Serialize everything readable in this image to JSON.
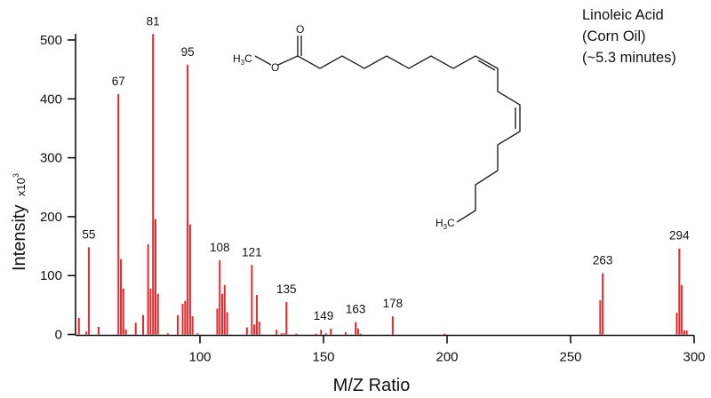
{
  "chart_data": {
    "type": "bar",
    "title_lines": [
      "Linoleic Acid",
      "(Corn Oil)",
      "(~5.3 minutes)"
    ],
    "xlabel": "M/Z Ratio",
    "ylabel": "Intensity",
    "ylabel_unit": "x10",
    "ylabel_unit_exp": "3",
    "xlim": [
      50,
      300
    ],
    "ylim": [
      0,
      500
    ],
    "xticks": [
      100,
      150,
      200,
      250,
      300
    ],
    "yticks": [
      0,
      100,
      200,
      300,
      400,
      500
    ],
    "grid": false,
    "bar_color": "#e8262b",
    "peaks": [
      {
        "mz": 51,
        "intensity": 28
      },
      {
        "mz": 54,
        "intensity": 5
      },
      {
        "mz": 55,
        "intensity": 148
      },
      {
        "mz": 59,
        "intensity": 13
      },
      {
        "mz": 67,
        "intensity": 408
      },
      {
        "mz": 68,
        "intensity": 128
      },
      {
        "mz": 69,
        "intensity": 78
      },
      {
        "mz": 70,
        "intensity": 9
      },
      {
        "mz": 74,
        "intensity": 20
      },
      {
        "mz": 77,
        "intensity": 33
      },
      {
        "mz": 79,
        "intensity": 153
      },
      {
        "mz": 80,
        "intensity": 78
      },
      {
        "mz": 81,
        "intensity": 510
      },
      {
        "mz": 82,
        "intensity": 196
      },
      {
        "mz": 83,
        "intensity": 69
      },
      {
        "mz": 87,
        "intensity": 2
      },
      {
        "mz": 91,
        "intensity": 33
      },
      {
        "mz": 93,
        "intensity": 52
      },
      {
        "mz": 94,
        "intensity": 57
      },
      {
        "mz": 95,
        "intensity": 458
      },
      {
        "mz": 96,
        "intensity": 187
      },
      {
        "mz": 97,
        "intensity": 31
      },
      {
        "mz": 99,
        "intensity": 2
      },
      {
        "mz": 107,
        "intensity": 44
      },
      {
        "mz": 108,
        "intensity": 126
      },
      {
        "mz": 109,
        "intensity": 69
      },
      {
        "mz": 110,
        "intensity": 84
      },
      {
        "mz": 111,
        "intensity": 38
      },
      {
        "mz": 119,
        "intensity": 12
      },
      {
        "mz": 121,
        "intensity": 118
      },
      {
        "mz": 122,
        "intensity": 17
      },
      {
        "mz": 123,
        "intensity": 67
      },
      {
        "mz": 124,
        "intensity": 22
      },
      {
        "mz": 131,
        "intensity": 8
      },
      {
        "mz": 133,
        "intensity": 2
      },
      {
        "mz": 134,
        "intensity": 2
      },
      {
        "mz": 135,
        "intensity": 55
      },
      {
        "mz": 139,
        "intensity": 1
      },
      {
        "mz": 147,
        "intensity": 1
      },
      {
        "mz": 149,
        "intensity": 8
      },
      {
        "mz": 151,
        "intensity": 2
      },
      {
        "mz": 153,
        "intensity": 10
      },
      {
        "mz": 159,
        "intensity": 4
      },
      {
        "mz": 163,
        "intensity": 21
      },
      {
        "mz": 164,
        "intensity": 10
      },
      {
        "mz": 165,
        "intensity": 1
      },
      {
        "mz": 178,
        "intensity": 31
      },
      {
        "mz": 199,
        "intensity": 1
      },
      {
        "mz": 262,
        "intensity": 58
      },
      {
        "mz": 263,
        "intensity": 104
      },
      {
        "mz": 293,
        "intensity": 37
      },
      {
        "mz": 294,
        "intensity": 146
      },
      {
        "mz": 295,
        "intensity": 84
      },
      {
        "mz": 296,
        "intensity": 7
      },
      {
        "mz": 297,
        "intensity": 7
      }
    ],
    "annotations": [
      {
        "text": "55",
        "mz": 55,
        "intensity": 148
      },
      {
        "text": "67",
        "mz": 67,
        "intensity": 408
      },
      {
        "text": "81",
        "mz": 81,
        "intensity": 510
      },
      {
        "text": "95",
        "mz": 95,
        "intensity": 458
      },
      {
        "text": "108",
        "mz": 108,
        "intensity": 126
      },
      {
        "text": "121",
        "mz": 121,
        "intensity": 118
      },
      {
        "text": "135",
        "mz": 135,
        "intensity": 55
      },
      {
        "text": "149",
        "mz": 150,
        "intensity": 10
      },
      {
        "text": "163",
        "mz": 163,
        "intensity": 21
      },
      {
        "text": "178",
        "mz": 178,
        "intensity": 31
      },
      {
        "text": "263",
        "mz": 263,
        "intensity": 104
      },
      {
        "text": "294",
        "mz": 294,
        "intensity": 146
      }
    ]
  },
  "structure": {
    "name_icon": "methyl-linoleate-skeletal-structure",
    "labels": {
      "methyl_left": "H",
      "methyl_left_sub": "3",
      "methyl_left_c": "C",
      "ester_o": "O",
      "carbonyl_o": "O",
      "methyl_end": "H",
      "methyl_end_sub": "3",
      "methyl_end_c": "C"
    }
  }
}
